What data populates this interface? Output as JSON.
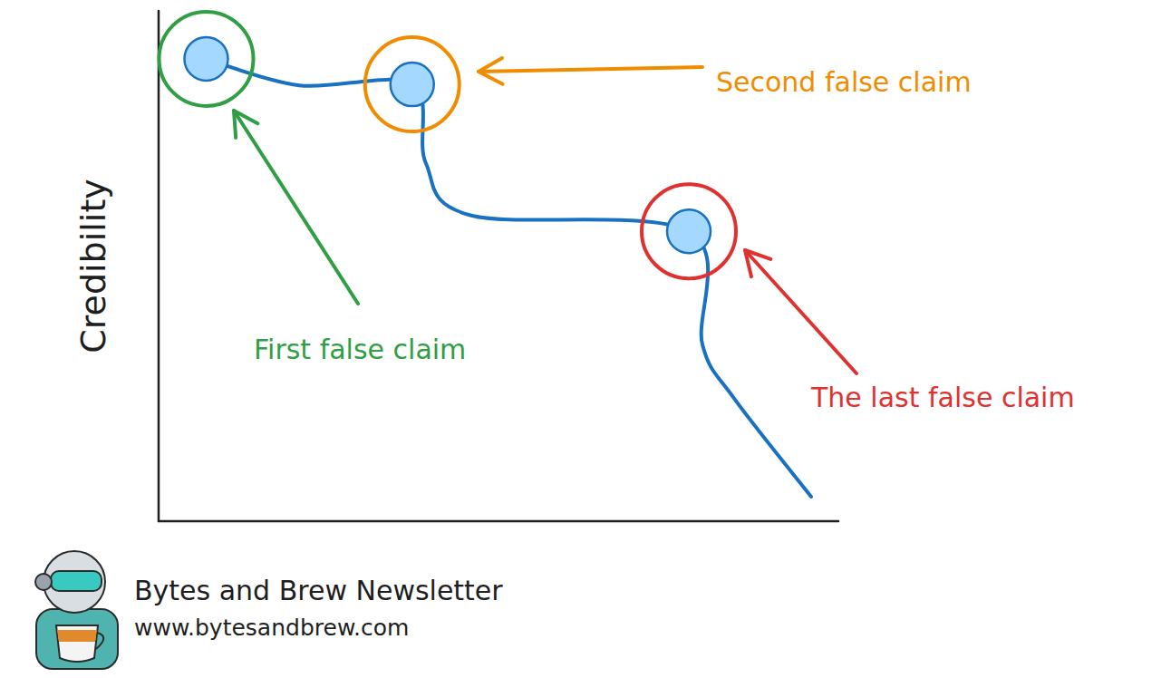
{
  "chart_data": {
    "type": "line",
    "ylabel": "Credibility",
    "x": [
      7,
      20.7,
      37.3,
      39.3,
      46,
      78,
      80,
      84.7,
      96
    ],
    "values": [
      90.6,
      85.4,
      85.6,
      70.2,
      59.9,
      56.8,
      34.6,
      24,
      4.8
    ],
    "color": "#1971c2",
    "xlim": [
      0,
      100
    ],
    "ylim": [
      0,
      100
    ],
    "tick_labels": false,
    "grid": false,
    "marker": "circle",
    "annotations": [
      {
        "text": "First false claim",
        "x": 7,
        "y": 90.6,
        "color": "#2f9e44"
      },
      {
        "text": "Second false claim",
        "x": 37.3,
        "y": 85.6,
        "color": "#f08c00"
      },
      {
        "text": "The last false claim",
        "x": 78,
        "y": 56.8,
        "color": "#e03131"
      }
    ]
  },
  "footer": {
    "title": "Bytes and Brew Newsletter",
    "url": "www.bytesandbrew.com"
  }
}
